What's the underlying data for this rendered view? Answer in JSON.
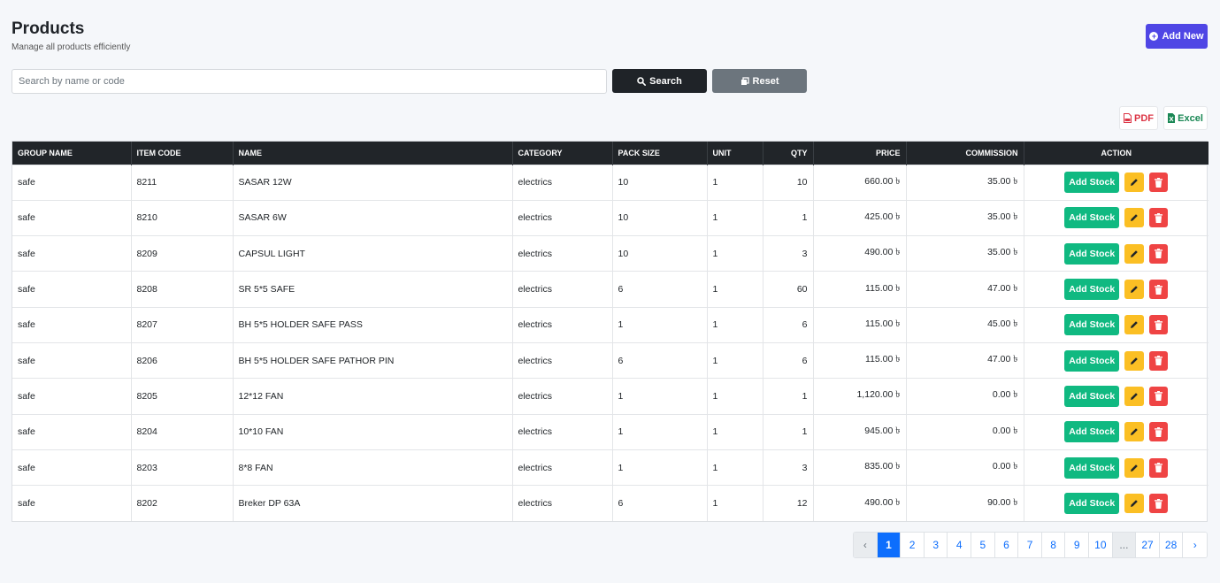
{
  "header": {
    "title": "Products",
    "subtitle": "Manage all products efficiently",
    "add_new_label": "Add New"
  },
  "search": {
    "placeholder": "Search by name or code",
    "value": "",
    "search_label": "Search",
    "reset_label": "Reset"
  },
  "export": {
    "pdf_label": "PDF",
    "excel_label": "Excel"
  },
  "table": {
    "columns": [
      "GROUP NAME",
      "ITEM CODE",
      "NAME",
      "CATEGORY",
      "PACK SIZE",
      "UNIT",
      "QTY",
      "PRICE",
      "COMMISSION",
      "ACTION"
    ],
    "add_stock_label": "Add Stock",
    "rows": [
      {
        "group": "safe",
        "code": "8211",
        "name": "SASAR 12W",
        "category": "electrics",
        "pack": "10",
        "unit": "1",
        "qty": "10",
        "price": "660.00 ৳",
        "commission": "35.00 ৳"
      },
      {
        "group": "safe",
        "code": "8210",
        "name": "SASAR 6W",
        "category": "electrics",
        "pack": "10",
        "unit": "1",
        "qty": "1",
        "price": "425.00 ৳",
        "commission": "35.00 ৳"
      },
      {
        "group": "safe",
        "code": "8209",
        "name": "CAPSUL LIGHT",
        "category": "electrics",
        "pack": "10",
        "unit": "1",
        "qty": "3",
        "price": "490.00 ৳",
        "commission": "35.00 ৳"
      },
      {
        "group": "safe",
        "code": "8208",
        "name": "SR 5*5 SAFE",
        "category": "electrics",
        "pack": "6",
        "unit": "1",
        "qty": "60",
        "price": "115.00 ৳",
        "commission": "47.00 ৳"
      },
      {
        "group": "safe",
        "code": "8207",
        "name": "BH 5*5 HOLDER SAFE PASS",
        "category": "electrics",
        "pack": "1",
        "unit": "1",
        "qty": "6",
        "price": "115.00 ৳",
        "commission": "45.00 ৳"
      },
      {
        "group": "safe",
        "code": "8206",
        "name": "BH 5*5 HOLDER SAFE PATHOR PIN",
        "category": "electrics",
        "pack": "6",
        "unit": "1",
        "qty": "6",
        "price": "115.00 ৳",
        "commission": "47.00 ৳"
      },
      {
        "group": "safe",
        "code": "8205",
        "name": "12*12 FAN",
        "category": "electrics",
        "pack": "1",
        "unit": "1",
        "qty": "1",
        "price": "1,120.00 ৳",
        "commission": "0.00 ৳"
      },
      {
        "group": "safe",
        "code": "8204",
        "name": "10*10 FAN",
        "category": "electrics",
        "pack": "1",
        "unit": "1",
        "qty": "1",
        "price": "945.00 ৳",
        "commission": "0.00 ৳"
      },
      {
        "group": "safe",
        "code": "8203",
        "name": "8*8 FAN",
        "category": "electrics",
        "pack": "1",
        "unit": "1",
        "qty": "3",
        "price": "835.00 ৳",
        "commission": "0.00 ৳"
      },
      {
        "group": "safe",
        "code": "8202",
        "name": "Breker DP 63A",
        "category": "electrics",
        "pack": "6",
        "unit": "1",
        "qty": "12",
        "price": "490.00 ৳",
        "commission": "90.00 ৳"
      }
    ]
  },
  "pagination": {
    "prev": "‹",
    "next": "›",
    "pages": [
      "1",
      "2",
      "3",
      "4",
      "5",
      "6",
      "7",
      "8",
      "9",
      "10",
      "...",
      "27",
      "28"
    ],
    "active": "1"
  },
  "icons": {
    "add_new": "plus-circle-icon",
    "search": "search-icon",
    "reset": "copy-icon",
    "pdf": "file-pdf-icon",
    "excel": "file-excel-icon",
    "edit": "pencil-icon",
    "delete": "trash-icon"
  },
  "colors": {
    "primary": "#4f46e5",
    "dark": "#212529",
    "success": "#10b981",
    "warning": "#fbbf24",
    "danger": "#ef4444",
    "link": "#0d6efd"
  }
}
